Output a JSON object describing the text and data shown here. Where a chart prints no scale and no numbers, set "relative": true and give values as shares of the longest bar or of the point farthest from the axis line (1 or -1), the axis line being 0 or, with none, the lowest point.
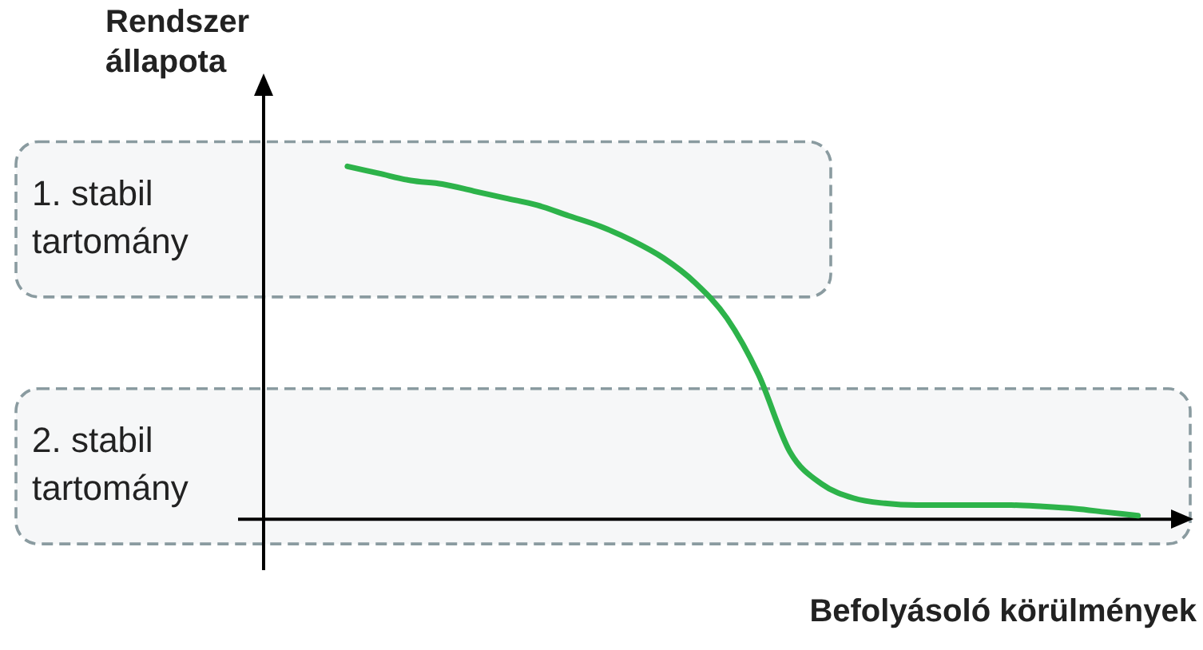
{
  "chart_data": {
    "type": "line",
    "relative": true,
    "xlabel": "Befolyásoló körülmények",
    "ylabel": "Rendszer állapota",
    "categories": [
      null,
      null,
      null,
      null,
      null,
      null,
      null,
      null,
      null,
      null,
      null,
      null,
      null,
      null,
      null,
      null,
      null,
      null,
      null,
      null,
      null,
      null,
      null,
      null,
      null,
      null
    ],
    "series": [
      {
        "color": "#2db34a",
        "values": [
          1.0,
          0.98,
          0.96,
          0.95,
          0.93,
          0.91,
          0.89,
          0.86,
          0.83,
          0.79,
          0.74,
          0.67,
          0.57,
          0.41,
          0.19,
          0.1,
          0.06,
          0.045,
          0.04,
          0.04,
          0.04,
          0.04,
          0.036,
          0.03,
          0.02,
          0.01
        ]
      }
    ],
    "bands": [
      {
        "axis": "y",
        "from": 0.63,
        "to": 1.07,
        "label": "1. stabil tartomány",
        "color": "#8a9ba0"
      },
      {
        "axis": "y",
        "from": -0.07,
        "to": 0.37,
        "label": "2. stabil tartomány",
        "color": "#8a9ba0"
      }
    ],
    "legend": false,
    "marker": "none",
    "line_style": "solid"
  }
}
